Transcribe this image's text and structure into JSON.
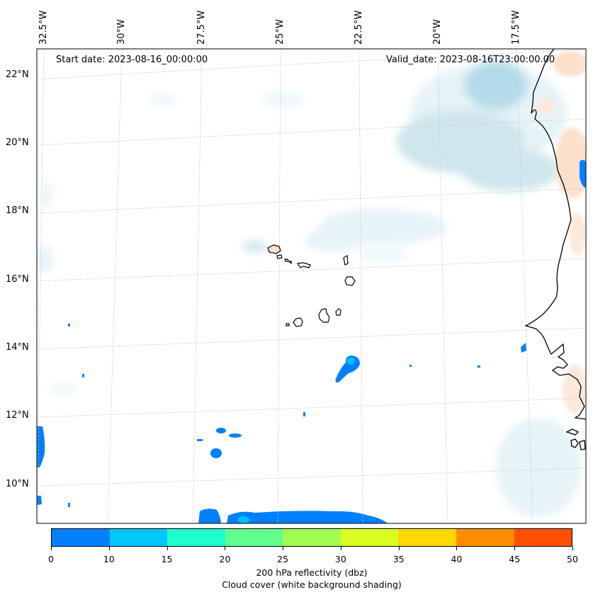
{
  "map": {
    "start_date": "Start date: 2023-08-16_00:00:00",
    "valid_date": "Valid_date: 2023-08-16T23:00:00.00",
    "lon_labels": [
      "32.5°W",
      "30°W",
      "27.5°W",
      "25°W",
      "22.5°W",
      "20°W",
      "17.5°W"
    ],
    "lat_labels": [
      "22°N",
      "20°N",
      "18°N",
      "16°N",
      "14°N",
      "12°N",
      "10°N"
    ],
    "colors": {
      "coast": "#000000",
      "grid": "#c8c8c8",
      "cloud_light": "#e6f3f7",
      "cloud_mid": "#cfe6ee",
      "cloud_dark": "#b6dbe8",
      "land_shade": "#fbe0cc",
      "refl_10": "#0080ff",
      "refl_15": "#00c0ff"
    }
  },
  "colorbar": {
    "ticks": [
      "0",
      "10",
      "15",
      "20",
      "25",
      "30",
      "35",
      "40",
      "45",
      "50"
    ],
    "colors": [
      "#0080ff",
      "#00c8ff",
      "#20ffd0",
      "#60ff90",
      "#a0ff50",
      "#d8ff20",
      "#ffd800",
      "#ff8c00",
      "#ff5000"
    ],
    "label": "200 hPa reflectivity (dbz)",
    "sublabel": "Cloud cover (white background shading)"
  }
}
